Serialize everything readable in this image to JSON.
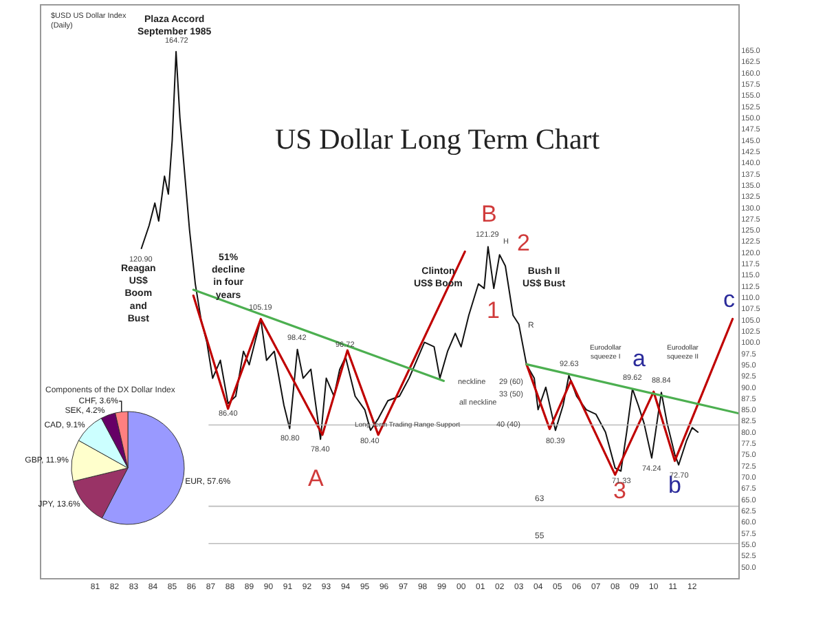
{
  "chart_data": [
    {
      "type": "line",
      "title": "US Dollar Long Term Chart",
      "subtitle": "$USD US Dollar Index\n(Daily)",
      "marker": "none",
      "line_style": "solid",
      "xlim": [
        1978.2,
        2014.4
      ],
      "ylim": [
        47.5,
        175
      ],
      "xticks": [
        {
          "value": 1981,
          "label": "81"
        },
        {
          "value": 1982,
          "label": "82"
        },
        {
          "value": 1983,
          "label": "83"
        },
        {
          "value": 1984,
          "label": "84"
        },
        {
          "value": 1985,
          "label": "85"
        },
        {
          "value": 1986,
          "label": "86"
        },
        {
          "value": 1987,
          "label": "87"
        },
        {
          "value": 1988,
          "label": "88"
        },
        {
          "value": 1989,
          "label": "89"
        },
        {
          "value": 1990,
          "label": "90"
        },
        {
          "value": 1991,
          "label": "91"
        },
        {
          "value": 1992,
          "label": "92"
        },
        {
          "value": 1993,
          "label": "93"
        },
        {
          "value": 1994,
          "label": "94"
        },
        {
          "value": 1995,
          "label": "95"
        },
        {
          "value": 1996,
          "label": "96"
        },
        {
          "value": 1997,
          "label": "97"
        },
        {
          "value": 1998,
          "label": "98"
        },
        {
          "value": 1999,
          "label": "99"
        },
        {
          "value": 2000,
          "label": "00"
        },
        {
          "value": 2001,
          "label": "01"
        },
        {
          "value": 2002,
          "label": "02"
        },
        {
          "value": 2003,
          "label": "03"
        },
        {
          "value": 2004,
          "label": "04"
        },
        {
          "value": 2005,
          "label": "05"
        },
        {
          "value": 2006,
          "label": "06"
        },
        {
          "value": 2007,
          "label": "07"
        },
        {
          "value": 2008,
          "label": "08"
        },
        {
          "value": 2009,
          "label": "09"
        },
        {
          "value": 2010,
          "label": "10"
        },
        {
          "value": 2011,
          "label": "11"
        },
        {
          "value": 2012,
          "label": "12"
        }
      ],
      "yticks": [
        {
          "value": 50,
          "label": "50.0"
        },
        {
          "value": 52.5,
          "label": "52.5"
        },
        {
          "value": 55,
          "label": "55.0"
        },
        {
          "value": 57.5,
          "label": "57.5"
        },
        {
          "value": 60,
          "label": "60.0"
        },
        {
          "value": 62.5,
          "label": "62.5"
        },
        {
          "value": 65,
          "label": "65.0"
        },
        {
          "value": 67.5,
          "label": "67.5"
        },
        {
          "value": 70,
          "label": "70.0"
        },
        {
          "value": 72.5,
          "label": "72.5"
        },
        {
          "value": 75,
          "label": "75.0"
        },
        {
          "value": 77.5,
          "label": "77.5"
        },
        {
          "value": 80,
          "label": "80.0"
        },
        {
          "value": 82.5,
          "label": "82.5"
        },
        {
          "value": 85,
          "label": "85.0"
        },
        {
          "value": 87.5,
          "label": "87.5"
        },
        {
          "value": 90,
          "label": "90.0"
        },
        {
          "value": 92.5,
          "label": "92.5"
        },
        {
          "value": 95,
          "label": "95.0"
        },
        {
          "value": 97.5,
          "label": "97.5"
        },
        {
          "value": 100,
          "label": "100.0"
        },
        {
          "value": 102.5,
          "label": "102.5"
        },
        {
          "value": 105,
          "label": "105.0"
        },
        {
          "value": 107.5,
          "label": "107.5"
        },
        {
          "value": 110,
          "label": "110.0"
        },
        {
          "value": 112.5,
          "label": "112.5"
        },
        {
          "value": 115,
          "label": "115.0"
        },
        {
          "value": 117.5,
          "label": "117.5"
        },
        {
          "value": 120,
          "label": "120.0"
        },
        {
          "value": 122.5,
          "label": "122.5"
        },
        {
          "value": 125,
          "label": "125.0"
        },
        {
          "value": 127.5,
          "label": "127.5"
        },
        {
          "value": 130,
          "label": "130.0"
        },
        {
          "value": 132.5,
          "label": "132.5"
        },
        {
          "value": 135,
          "label": "135.0"
        },
        {
          "value": 137.5,
          "label": "137.5"
        },
        {
          "value": 140,
          "label": "140.0"
        },
        {
          "value": 142.5,
          "label": "142.5"
        },
        {
          "value": 145,
          "label": "145.0"
        },
        {
          "value": 147.5,
          "label": "147.5"
        },
        {
          "value": 150,
          "label": "150.0"
        },
        {
          "value": 152.5,
          "label": "152.5"
        },
        {
          "value": 155,
          "label": "155.0"
        },
        {
          "value": 157.5,
          "label": "157.5"
        },
        {
          "value": 160,
          "label": "160.0"
        },
        {
          "value": 162.5,
          "label": "162.5"
        },
        {
          "value": 165,
          "label": "165.0"
        }
      ],
      "series": [
        {
          "color": "#111111",
          "x": [
            1983.4,
            1983.8,
            1984.1,
            1984.3,
            1984.6,
            1984.8,
            1985.0,
            1985.2,
            1985.4,
            1985.6,
            1985.9,
            1986.2,
            1986.5,
            1986.8,
            1987.1,
            1987.5,
            1987.9,
            1988.3,
            1988.7,
            1989.0,
            1989.6,
            1989.9,
            1990.3,
            1990.8,
            1991.1,
            1991.5,
            1991.8,
            1992.2,
            1992.7,
            1993.0,
            1993.4,
            1993.7,
            1994.0,
            1994.5,
            1995.0,
            1995.3,
            1995.7,
            1996.2,
            1996.8,
            1997.3,
            1997.7,
            1998.1,
            1998.6,
            1998.9,
            1999.3,
            1999.7,
            2000.0,
            2000.4,
            2000.9,
            2001.2,
            2001.4,
            2001.7,
            2002.0,
            2002.3,
            2002.7,
            2003.0,
            2003.4,
            2003.8,
            2004.0,
            2004.4,
            2004.9,
            2005.3,
            2005.6,
            2006.0,
            2006.5,
            2007.0,
            2007.5,
            2008.0,
            2008.3,
            2008.6,
            2008.9,
            2009.2,
            2009.5,
            2009.9,
            2010.1,
            2010.4,
            2010.7,
            2011.1,
            2011.3,
            2011.7,
            2012.0,
            2012.3
          ],
          "values": [
            120.9,
            126,
            131,
            127,
            137,
            133,
            145,
            164.72,
            150,
            140,
            125,
            113,
            105,
            100,
            92,
            96,
            86.4,
            88,
            98,
            95,
            105.19,
            96,
            98,
            86,
            80.8,
            98.42,
            92,
            94,
            78.4,
            92,
            88,
            94,
            96.72,
            88,
            85,
            80.4,
            83,
            87,
            88,
            92,
            96,
            100,
            99,
            92,
            98,
            102,
            99,
            106,
            113,
            112,
            121.29,
            112,
            119.5,
            117,
            106,
            104,
            95,
            92,
            85,
            90,
            80.39,
            86,
            92.63,
            88,
            85,
            84,
            80,
            72,
            71.33,
            80,
            89.62,
            86,
            82,
            74.24,
            80,
            88.84,
            82,
            75,
            72.7,
            78,
            81,
            80
          ]
        },
        {
          "color": "#c00000",
          "x": [
            1986.1,
            1987.9,
            1989.6,
            1992.8,
            1994.1,
            1995.7,
            2000.2
          ],
          "values": [
            110.4,
            85.2,
            105.2,
            79.4,
            98.2,
            79.4,
            120.2
          ]
        },
        {
          "color": "#c00000",
          "x": [
            2003.4,
            2004.6,
            2005.7,
            2008.0,
            2010.0,
            2011.1,
            2014.1
          ],
          "values": [
            95.1,
            80.7,
            91.4,
            70.5,
            89,
            73.6,
            105.2
          ]
        },
        {
          "color": "#4caf50",
          "x": [
            1986.1,
            1999.1
          ],
          "values": [
            111.7,
            91.4
          ]
        },
        {
          "color": "#4caf50",
          "x": [
            2003.4,
            2014.4
          ],
          "values": [
            95.1,
            84.2
          ]
        }
      ],
      "ref_lines": [
        {
          "axis": "y",
          "value": 81.6,
          "color": "#bbbbbb"
        },
        {
          "axis": "y",
          "value": 63.5,
          "label": "63",
          "color": "#bbbbbb"
        },
        {
          "axis": "y",
          "value": 55.2,
          "label": "55",
          "color": "#bbbbbb"
        }
      ],
      "annotations": [
        "Plaza Accord\nSeptember 1985",
        "Reagan\nUS$\nBoom\nand\nBust",
        "51%\ndecline\nin four\nyears",
        "Clinton\nUS$ Boom",
        "neckline",
        "all neckline",
        "29 (60)",
        "33 (50)",
        "40 (40)",
        "H",
        "Bush II\nUS$ Bust",
        "R",
        "Eurodollar\nsqueeze I",
        "Eurodollar\nsqueeze II",
        "Long Term Trading Range Support",
        "A",
        "B",
        "1",
        "2",
        "3",
        "a",
        "b",
        "c",
        {
          "text": "164.72",
          "x": 1985.2,
          "y": 164.72
        },
        {
          "text": "120.90",
          "x": 1983.4,
          "y": 120.9
        },
        {
          "text": "105.19",
          "x": 1989.6,
          "y": 105.19
        },
        {
          "text": "86.40",
          "x": 1987.9,
          "y": 86.4
        },
        {
          "text": "80.80",
          "x": 1991.1,
          "y": 80.8
        },
        {
          "text": "98.42",
          "x": 1991.5,
          "y": 98.42
        },
        {
          "text": "78.40",
          "x": 1992.7,
          "y": 78.4
        },
        {
          "text": "96.72",
          "x": 1994.0,
          "y": 96.72
        },
        {
          "text": "80.40",
          "x": 1995.3,
          "y": 80.4
        },
        {
          "text": "121.29",
          "x": 2001.4,
          "y": 121.29
        },
        {
          "text": "92.63",
          "x": 2005.6,
          "y": 92.63
        },
        {
          "text": "80.39",
          "x": 2004.9,
          "y": 80.39
        },
        {
          "text": "71.33",
          "x": 2008.3,
          "y": 71.33
        },
        {
          "text": "89.62",
          "x": 2008.9,
          "y": 89.62
        },
        {
          "text": "88.84",
          "x": 2010.4,
          "y": 88.84
        },
        {
          "text": "74.24",
          "x": 2009.9,
          "y": 74.24
        },
        {
          "text": "72.70",
          "x": 2011.3,
          "y": 72.7
        }
      ]
    },
    {
      "type": "pie",
      "title": "Components of the DX Dollar Index",
      "categories": [
        "EUR, 57.6%",
        "JPY, 13.6%",
        "GBP, 11.9%",
        "CAD, 9.1%",
        "SEK, 4.2%",
        "CHF, 3.6%"
      ],
      "values": [
        57.6,
        13.6,
        11.9,
        9.1,
        4.2,
        3.6
      ],
      "colors": [
        "#9999ff",
        "#993366",
        "#ffffcc",
        "#ccffff",
        "#660066",
        "#ff8080"
      ]
    }
  ]
}
